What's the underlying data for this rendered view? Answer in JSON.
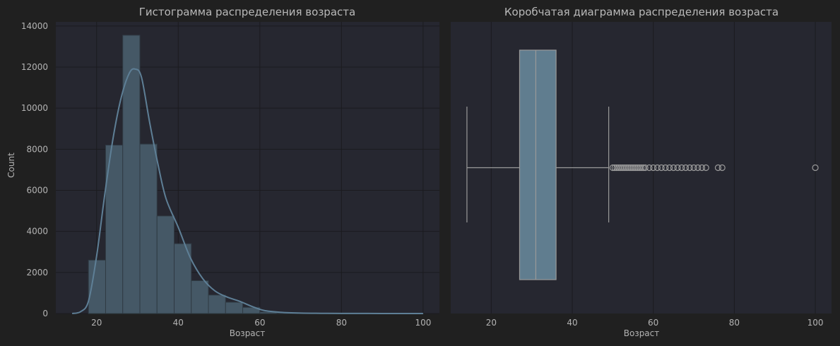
{
  "colors": {
    "figure_bg": "#202020",
    "axes_bg": "#262730",
    "grid": "#1b1b1f",
    "bar_fill": "#455866",
    "bar_edge": "#303b44",
    "kde": "#5e7f96",
    "box_fill": "#607d8f",
    "whisker": "#9a9a9a",
    "flier": "#9a9a9a",
    "text": "#b3b3b3"
  },
  "chart_data": [
    {
      "type": "bar",
      "subtype": "histogram-with-kde",
      "title": "Гистограмма распределения возраста",
      "xlabel": "Возраст",
      "ylabel": "Count",
      "xlim": [
        10,
        104
      ],
      "ylim": [
        0,
        14200
      ],
      "xticks": [
        20,
        40,
        60,
        80,
        100
      ],
      "yticks": [
        0,
        2000,
        4000,
        6000,
        8000,
        10000,
        12000,
        14000
      ],
      "grid": true,
      "bins": [
        {
          "x0": 18.0,
          "x1": 22.2,
          "count": 2600
        },
        {
          "x0": 22.2,
          "x1": 26.4,
          "count": 8200
        },
        {
          "x0": 26.4,
          "x1": 30.6,
          "count": 13550
        },
        {
          "x0": 30.6,
          "x1": 34.8,
          "count": 8250
        },
        {
          "x0": 34.8,
          "x1": 39.0,
          "count": 4750
        },
        {
          "x0": 39.0,
          "x1": 43.2,
          "count": 3400
        },
        {
          "x0": 43.2,
          "x1": 47.4,
          "count": 1600
        },
        {
          "x0": 47.4,
          "x1": 51.6,
          "count": 900
        },
        {
          "x0": 51.6,
          "x1": 55.8,
          "count": 550
        },
        {
          "x0": 55.8,
          "x1": 60.0,
          "count": 300
        },
        {
          "x0": 60.0,
          "x1": 64.2,
          "count": 80
        },
        {
          "x0": 64.2,
          "x1": 68.4,
          "count": 25
        },
        {
          "x0": 68.4,
          "x1": 72.6,
          "count": 8
        },
        {
          "x0": 72.6,
          "x1": 76.8,
          "count": 4
        },
        {
          "x0": 76.8,
          "x1": 81.0,
          "count": 1
        },
        {
          "x0": 95.8,
          "x1": 100.0,
          "count": 1
        }
      ],
      "kde": {
        "x": [
          14,
          16,
          18,
          20,
          22,
          24,
          26,
          28,
          29.5,
          31,
          33,
          35,
          37,
          40,
          43,
          46,
          49,
          52,
          55,
          58,
          61,
          65,
          70,
          75,
          80,
          90,
          100
        ],
        "y": [
          0,
          80,
          600,
          2800,
          5800,
          8500,
          10500,
          11700,
          11900,
          11500,
          9300,
          7300,
          5600,
          4200,
          2700,
          1700,
          1100,
          800,
          600,
          350,
          150,
          60,
          20,
          10,
          5,
          2,
          0
        ]
      }
    },
    {
      "type": "box",
      "title": "Коробчатая диаграмма распределения возраста",
      "xlabel": "Возраст",
      "xlim": [
        10,
        104
      ],
      "xticks": [
        20,
        40,
        60,
        80,
        100
      ],
      "grid": true,
      "box": {
        "whisker_low": 14,
        "q1": 27,
        "median": 31,
        "q3": 36,
        "whisker_high": 49
      },
      "outliers": [
        50,
        50.5,
        51,
        51.5,
        52,
        52.5,
        53,
        53.5,
        54,
        54.5,
        55,
        55.5,
        56,
        56.5,
        57,
        57.5,
        58,
        59,
        60,
        61,
        62,
        63,
        64,
        65,
        66,
        67,
        68,
        69,
        70,
        71,
        72,
        73,
        76,
        77,
        100
      ]
    }
  ]
}
